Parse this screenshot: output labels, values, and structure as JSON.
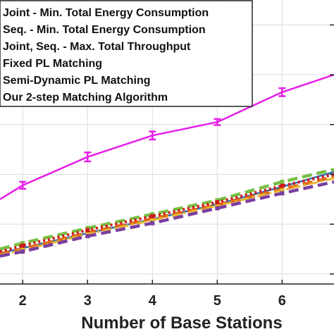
{
  "chart_data": {
    "type": "line",
    "title": "",
    "xlabel": "Number of Base Stations",
    "ylabel": "",
    "xlim": [
      1.65,
      6.8
    ],
    "ylim": [
      0,
      5.7
    ],
    "xticks": [
      2,
      3,
      4,
      5,
      6
    ],
    "yticks": [
      0.2,
      1.2,
      2.2,
      3.2,
      4.2,
      5.2
    ],
    "grid": true,
    "legend_position": "top-left",
    "series": [
      {
        "name": "Joint - Min. Total Energy Consumption",
        "color": "#2f6db5",
        "style": "solid",
        "x": [
          1.65,
          2,
          3,
          4,
          5,
          6,
          6.8
        ],
        "y": [
          0.62,
          0.72,
          1.02,
          1.3,
          1.6,
          1.95,
          2.25
        ]
      },
      {
        "name": "Seq. - Min. Total Energy Consumption",
        "color": "#e06a1b",
        "style": "dashed",
        "x": [
          1.65,
          2,
          3,
          4,
          5,
          6,
          6.8
        ],
        "y": [
          0.6,
          0.7,
          1.03,
          1.31,
          1.59,
          1.9,
          2.15
        ]
      },
      {
        "name": "Joint, Seq. - Max. Total Throughput",
        "color": "#e8b82a",
        "style": "dashdot",
        "x": [
          1.65,
          2,
          3,
          4,
          5,
          6,
          6.8
        ],
        "y": [
          0.58,
          0.68,
          1.0,
          1.28,
          1.57,
          1.88,
          2.12
        ]
      },
      {
        "name": "Fixed PL Matching",
        "color": "#7b3fa0",
        "style": "dashed",
        "x": [
          1.65,
          2,
          3,
          4,
          5,
          6,
          6.8
        ],
        "y": [
          0.56,
          0.65,
          0.96,
          1.22,
          1.52,
          1.82,
          2.05
        ]
      },
      {
        "name": "Semi-Dynamic PL Matching",
        "color": "#77c043",
        "style": "dashed",
        "x": [
          1.65,
          2,
          3,
          4,
          5,
          6,
          6.8
        ],
        "y": [
          0.7,
          0.82,
          1.12,
          1.4,
          1.68,
          2.05,
          2.3
        ]
      },
      {
        "name": "Our 2-step Matching Algorithm",
        "color": "#e71ee8",
        "style": "solid",
        "x": [
          1.65,
          2,
          3,
          4,
          5,
          6,
          6.8
        ],
        "y": [
          1.7,
          1.98,
          2.55,
          2.98,
          3.25,
          3.85,
          4.2
        ]
      },
      {
        "name": "",
        "color": "#cc1a1a",
        "style": "dotted",
        "x": [
          1.65,
          2,
          3,
          4,
          5,
          6,
          6.8
        ],
        "y": [
          0.65,
          0.77,
          1.08,
          1.36,
          1.64,
          1.97,
          2.2
        ]
      }
    ],
    "error_bars": {
      "series_index": 5,
      "x": [
        2,
        3,
        4,
        5,
        6
      ],
      "y": [
        1.98,
        2.55,
        2.98,
        3.25,
        3.85
      ],
      "err": [
        0.07,
        0.09,
        0.08,
        0.06,
        0.08
      ]
    }
  }
}
